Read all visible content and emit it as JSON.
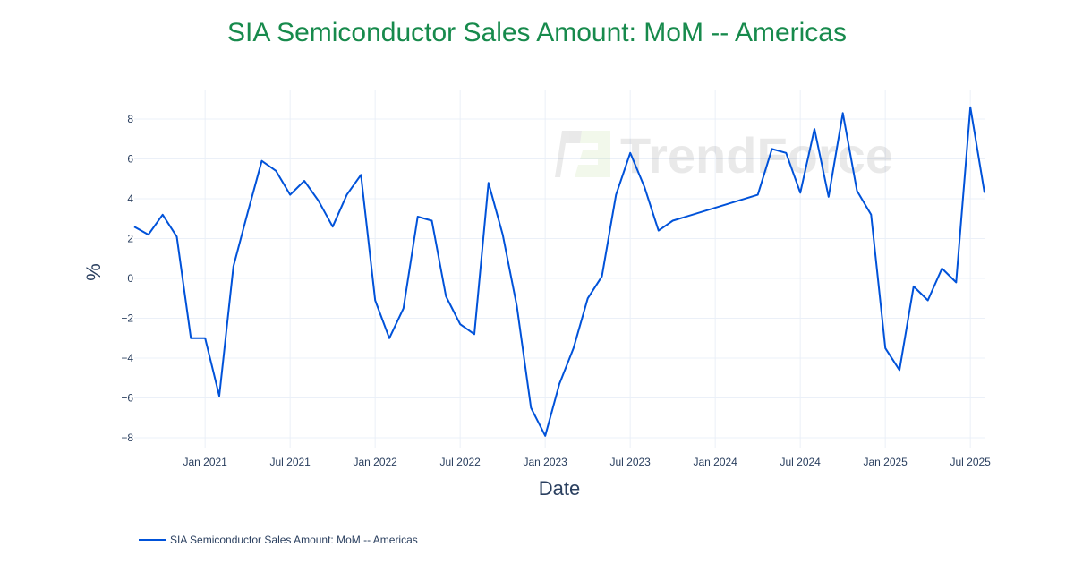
{
  "chart_data": {
    "type": "line",
    "title": "SIA Semiconductor Sales Amount: MoM -- Americas",
    "xlabel": "Date",
    "ylabel": "%",
    "ylim": [
      -8.5,
      9.5
    ],
    "xlim": [
      "2020-08",
      "2025-08"
    ],
    "grid": true,
    "legend_position": "bottom-left",
    "line_color": "#0052d9",
    "title_color": "#178a4c",
    "watermark": "TrendForce",
    "y_ticks": [
      8,
      6,
      4,
      2,
      0,
      -2,
      -4,
      -6,
      -8
    ],
    "y_tick_labels": [
      "8",
      "6",
      "4",
      "2",
      "0",
      "−2",
      "−4",
      "−6",
      "−8"
    ],
    "x_ticks": [
      "2021-01",
      "2021-07",
      "2022-01",
      "2022-07",
      "2023-01",
      "2023-07",
      "2024-01",
      "2024-07",
      "2025-01",
      "2025-07"
    ],
    "x_tick_labels": [
      "Jan 2021",
      "Jul 2021",
      "Jan 2022",
      "Jul 2022",
      "Jan 2023",
      "Jul 2023",
      "Jan 2024",
      "Jul 2024",
      "Jan 2025",
      "Jul 2025"
    ],
    "series": [
      {
        "name": "SIA Semiconductor Sales Amount: MoM -- Americas",
        "x": [
          "2020-08",
          "2020-09",
          "2020-10",
          "2020-11",
          "2020-12",
          "2021-01",
          "2021-02",
          "2021-03",
          "2021-04",
          "2021-05",
          "2021-06",
          "2021-07",
          "2021-08",
          "2021-09",
          "2021-10",
          "2021-11",
          "2021-12",
          "2022-01",
          "2022-02",
          "2022-03",
          "2022-04",
          "2022-05",
          "2022-06",
          "2022-07",
          "2022-08",
          "2022-09",
          "2022-10",
          "2022-11",
          "2022-12",
          "2023-01",
          "2023-02",
          "2023-03",
          "2023-04",
          "2023-05",
          "2023-06",
          "2023-07",
          "2023-08",
          "2023-09",
          "2023-10",
          "2024-04",
          "2024-05",
          "2024-06",
          "2024-07",
          "2024-08",
          "2024-09",
          "2024-10",
          "2024-11",
          "2024-12",
          "2025-01",
          "2025-02",
          "2025-03",
          "2025-04",
          "2025-05",
          "2025-06",
          "2025-07",
          "2025-08"
        ],
        "y": [
          2.6,
          2.2,
          3.2,
          2.1,
          -3.0,
          -3.0,
          -5.9,
          0.6,
          3.3,
          5.9,
          5.4,
          4.2,
          4.9,
          3.9,
          2.6,
          4.2,
          5.2,
          -1.1,
          -3.0,
          -1.5,
          3.1,
          2.9,
          -0.9,
          -2.3,
          -2.8,
          4.8,
          2.2,
          -1.4,
          -6.5,
          -7.9,
          -5.3,
          -3.5,
          -1.0,
          0.1,
          4.2,
          6.3,
          4.6,
          2.4,
          2.9,
          4.2,
          6.5,
          6.3,
          4.3,
          7.5,
          4.1,
          8.3,
          4.4,
          3.2,
          -3.5,
          -4.6,
          -0.4,
          -1.1,
          0.5,
          -0.2,
          8.6,
          4.3
        ]
      }
    ]
  }
}
